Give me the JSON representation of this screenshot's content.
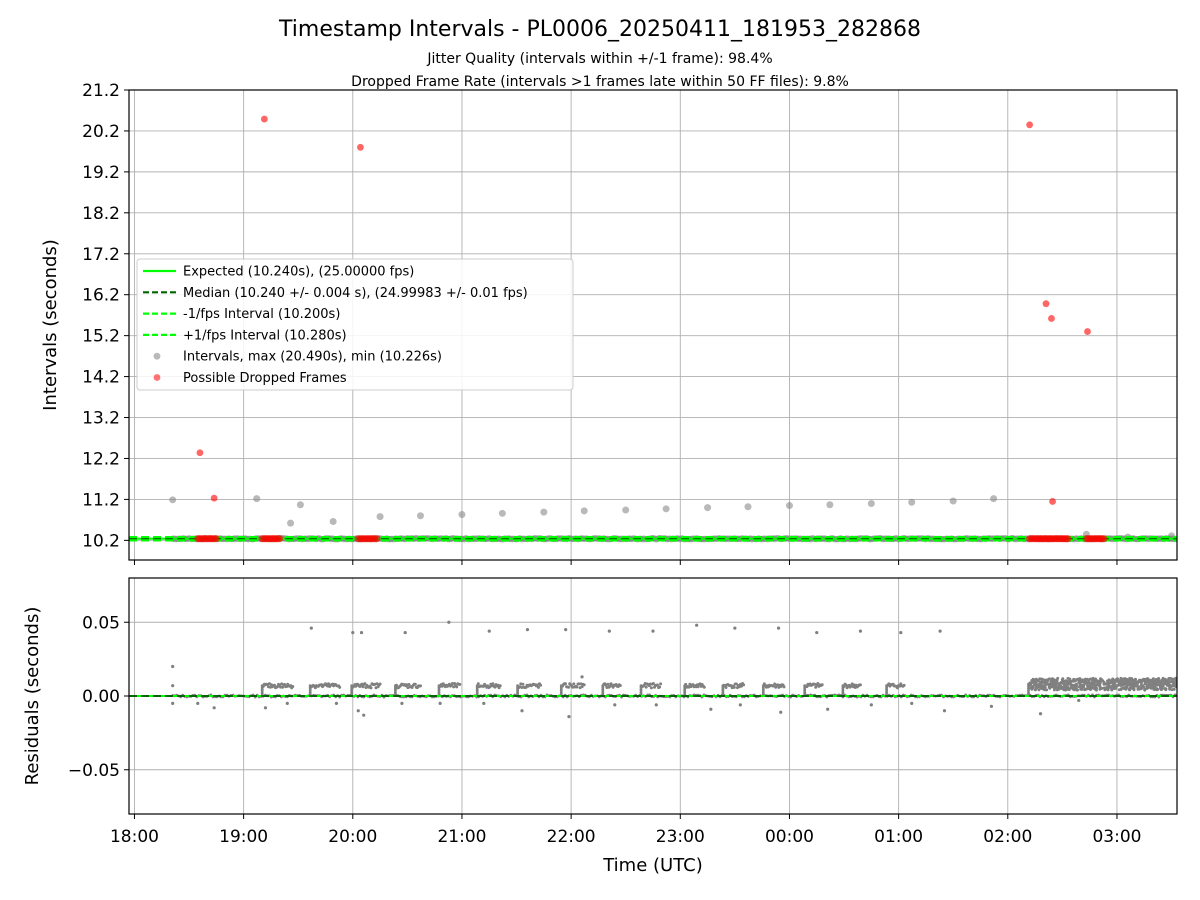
{
  "chart_data": [
    {
      "type": "scatter",
      "title": "Timestamp Intervals - PL0006_20250411_181953_282868",
      "subtitle": [
        "Jitter Quality (intervals within +/-1 frame): 98.4%",
        "Dropped Frame Rate (intervals >1 frames late within 50 FF files): 9.8%"
      ],
      "xlabel": "",
      "ylabel": "Intervals (seconds)",
      "x_unit": "hours since 18:00 UTC",
      "xlim": [
        -0.05,
        9.55
      ],
      "ylim": [
        9.72,
        21.2
      ],
      "yticks": [
        10.2,
        11.2,
        12.2,
        13.2,
        14.2,
        15.2,
        16.2,
        17.2,
        18.2,
        19.2,
        20.2,
        21.2
      ],
      "ytick_labels": [
        "10.2",
        "11.2",
        "12.2",
        "13.2",
        "14.2",
        "15.2",
        "16.2",
        "17.2",
        "18.2",
        "19.2",
        "20.2",
        "21.2"
      ],
      "grid": true,
      "legend_position": "center-left",
      "lines": [
        {
          "name": "Expected (10.240s), (25.00000 fps)",
          "y": 10.24,
          "color": "#00ff00",
          "style": "solid"
        },
        {
          "name": "Median (10.240 +/- 0.004 s), (24.99983 +/- 0.01 fps)",
          "y": 10.24,
          "color": "#006400",
          "style": "dashed"
        },
        {
          "name": "-1/fps Interval (10.200s)",
          "y": 10.2,
          "color": "#00ff00",
          "style": "dashed"
        },
        {
          "name": "+1/fps Interval (10.280s)",
          "y": 10.28,
          "color": "#00ff00",
          "style": "dashed"
        }
      ],
      "series": [
        {
          "name": "Intervals, max (20.490s), min (10.226s)",
          "color": "#808080",
          "band": {
            "x_start": 0.35,
            "x_end": 9.55,
            "y": 10.24
          },
          "points": [
            {
              "x": 0.35,
              "y": 11.19
            },
            {
              "x": 1.12,
              "y": 11.22
            },
            {
              "x": 1.43,
              "y": 10.62
            },
            {
              "x": 1.52,
              "y": 11.07
            },
            {
              "x": 1.82,
              "y": 10.66
            },
            {
              "x": 2.25,
              "y": 10.78
            },
            {
              "x": 2.62,
              "y": 10.8
            },
            {
              "x": 3.0,
              "y": 10.83
            },
            {
              "x": 3.37,
              "y": 10.86
            },
            {
              "x": 3.75,
              "y": 10.89
            },
            {
              "x": 4.12,
              "y": 10.92
            },
            {
              "x": 4.5,
              "y": 10.94
            },
            {
              "x": 4.87,
              "y": 10.97
            },
            {
              "x": 5.25,
              "y": 11.0
            },
            {
              "x": 5.62,
              "y": 11.02
            },
            {
              "x": 6.0,
              "y": 11.05
            },
            {
              "x": 6.37,
              "y": 11.07
            },
            {
              "x": 6.75,
              "y": 11.1
            },
            {
              "x": 7.12,
              "y": 11.13
            },
            {
              "x": 7.5,
              "y": 11.16
            },
            {
              "x": 7.87,
              "y": 11.22
            },
            {
              "x": 8.72,
              "y": 10.35
            },
            {
              "x": 9.1,
              "y": 10.28
            },
            {
              "x": 9.5,
              "y": 10.31
            }
          ]
        },
        {
          "name": "Possible Dropped Frames",
          "color": "#ff0000",
          "clusters": [
            {
              "x_start": 0.58,
              "x_end": 0.75,
              "y": 10.24
            },
            {
              "x_start": 1.17,
              "x_end": 1.33,
              "y": 10.24
            },
            {
              "x_start": 2.05,
              "x_end": 2.22,
              "y": 10.24
            },
            {
              "x_start": 8.2,
              "x_end": 8.55,
              "y": 10.24
            },
            {
              "x_start": 8.72,
              "x_end": 8.88,
              "y": 10.24
            }
          ],
          "points": [
            {
              "x": 0.6,
              "y": 12.34
            },
            {
              "x": 0.73,
              "y": 11.23
            },
            {
              "x": 1.19,
              "y": 20.49
            },
            {
              "x": 2.07,
              "y": 19.8
            },
            {
              "x": 8.2,
              "y": 20.35
            },
            {
              "x": 8.35,
              "y": 15.98
            },
            {
              "x": 8.4,
              "y": 15.62
            },
            {
              "x": 8.41,
              "y": 11.15
            },
            {
              "x": 8.73,
              "y": 15.3
            }
          ]
        }
      ]
    },
    {
      "type": "scatter",
      "title": "",
      "xlabel": "Time (UTC)",
      "ylabel": "Residuals (seconds)",
      "x_unit": "hours since 18:00 UTC",
      "xlim": [
        -0.05,
        9.55
      ],
      "ylim": [
        -0.08,
        0.08
      ],
      "yticks": [
        -0.05,
        0.0,
        0.05
      ],
      "ytick_labels": [
        "−0.05",
        "0.00",
        "0.05"
      ],
      "xticks": [
        0,
        1,
        2,
        3,
        4,
        5,
        6,
        7,
        8,
        9
      ],
      "xtick_labels": [
        "18:00",
        "19:00",
        "20:00",
        "21:00",
        "22:00",
        "23:00",
        "00:00",
        "01:00",
        "02:00",
        "03:00"
      ],
      "grid": true,
      "lines": [
        {
          "name": "zero",
          "y": 0.0,
          "color": "#00ff00",
          "style": "solid"
        },
        {
          "name": "median",
          "y": 0.0,
          "color": "#006400",
          "style": "dashed"
        }
      ],
      "series": [
        {
          "name": "residuals",
          "color": "#808080",
          "baseline": {
            "x_start": 0.35,
            "x_end": 9.55,
            "y": 0.0
          },
          "segments": [
            {
              "x_start": 1.18,
              "x_end": 1.45,
              "y": 0.007
            },
            {
              "x_start": 1.62,
              "x_end": 1.88,
              "y": 0.007
            },
            {
              "x_start": 2.0,
              "x_end": 2.25,
              "y": 0.007
            },
            {
              "x_start": 2.4,
              "x_end": 2.62,
              "y": 0.007
            },
            {
              "x_start": 2.8,
              "x_end": 2.98,
              "y": 0.007
            },
            {
              "x_start": 3.15,
              "x_end": 3.35,
              "y": 0.007
            },
            {
              "x_start": 3.52,
              "x_end": 3.72,
              "y": 0.007
            },
            {
              "x_start": 3.92,
              "x_end": 4.12,
              "y": 0.007
            },
            {
              "x_start": 4.3,
              "x_end": 4.45,
              "y": 0.007
            },
            {
              "x_start": 4.65,
              "x_end": 4.82,
              "y": 0.007
            },
            {
              "x_start": 5.05,
              "x_end": 5.22,
              "y": 0.007
            },
            {
              "x_start": 5.4,
              "x_end": 5.58,
              "y": 0.007
            },
            {
              "x_start": 5.77,
              "x_end": 5.95,
              "y": 0.007
            },
            {
              "x_start": 6.15,
              "x_end": 6.3,
              "y": 0.007
            },
            {
              "x_start": 6.5,
              "x_end": 6.65,
              "y": 0.007
            },
            {
              "x_start": 6.9,
              "x_end": 7.05,
              "y": 0.007
            },
            {
              "x_start": 8.2,
              "x_end": 9.55,
              "y": 0.008
            }
          ],
          "points": [
            {
              "x": 0.35,
              "y": 0.02
            },
            {
              "x": 0.35,
              "y": 0.007
            },
            {
              "x": 0.35,
              "y": -0.005
            },
            {
              "x": 0.58,
              "y": -0.005
            },
            {
              "x": 0.73,
              "y": -0.008
            },
            {
              "x": 1.2,
              "y": -0.008
            },
            {
              "x": 1.4,
              "y": -0.005
            },
            {
              "x": 1.62,
              "y": 0.046
            },
            {
              "x": 1.85,
              "y": -0.005
            },
            {
              "x": 2.0,
              "y": 0.043
            },
            {
              "x": 2.05,
              "y": -0.01
            },
            {
              "x": 2.08,
              "y": 0.043
            },
            {
              "x": 2.1,
              "y": -0.013
            },
            {
              "x": 2.45,
              "y": -0.005
            },
            {
              "x": 2.48,
              "y": 0.043
            },
            {
              "x": 2.8,
              "y": -0.005
            },
            {
              "x": 2.88,
              "y": 0.05
            },
            {
              "x": 3.2,
              "y": -0.005
            },
            {
              "x": 3.25,
              "y": 0.044
            },
            {
              "x": 3.55,
              "y": -0.01
            },
            {
              "x": 3.6,
              "y": 0.045
            },
            {
              "x": 3.95,
              "y": 0.045
            },
            {
              "x": 3.98,
              "y": -0.014
            },
            {
              "x": 4.1,
              "y": 0.013
            },
            {
              "x": 4.35,
              "y": 0.044
            },
            {
              "x": 4.4,
              "y": -0.006
            },
            {
              "x": 4.75,
              "y": 0.044
            },
            {
              "x": 4.78,
              "y": -0.006
            },
            {
              "x": 5.15,
              "y": 0.048
            },
            {
              "x": 5.28,
              "y": -0.009
            },
            {
              "x": 5.5,
              "y": 0.046
            },
            {
              "x": 5.55,
              "y": -0.006
            },
            {
              "x": 5.9,
              "y": 0.046
            },
            {
              "x": 5.92,
              "y": -0.011
            },
            {
              "x": 6.25,
              "y": 0.043
            },
            {
              "x": 6.35,
              "y": -0.009
            },
            {
              "x": 6.65,
              "y": 0.044
            },
            {
              "x": 6.75,
              "y": -0.006
            },
            {
              "x": 7.02,
              "y": 0.043
            },
            {
              "x": 7.12,
              "y": -0.005
            },
            {
              "x": 7.38,
              "y": 0.044
            },
            {
              "x": 7.42,
              "y": -0.01
            },
            {
              "x": 7.85,
              "y": -0.007
            },
            {
              "x": 8.3,
              "y": -0.012
            },
            {
              "x": 8.65,
              "y": -0.003
            }
          ]
        }
      ]
    }
  ],
  "legend": {
    "items": [
      {
        "label": "Expected (10.240s), (25.00000 fps)",
        "kind": "line",
        "color": "#00ff00",
        "dash": "solid"
      },
      {
        "label": "Median (10.240 +/- 0.004 s), (24.99983 +/- 0.01 fps)",
        "kind": "line",
        "color": "#006400",
        "dash": "dashed"
      },
      {
        "label": "-1/fps Interval (10.200s)",
        "kind": "line",
        "color": "#00ff00",
        "dash": "dashed"
      },
      {
        "label": "+1/fps Interval (10.280s)",
        "kind": "line",
        "color": "#00ff00",
        "dash": "dashed"
      },
      {
        "label": "Intervals, max (20.490s), min (10.226s)",
        "kind": "marker",
        "color": "#808080"
      },
      {
        "label": "Possible Dropped Frames",
        "kind": "marker",
        "color": "#ff0000"
      }
    ]
  }
}
